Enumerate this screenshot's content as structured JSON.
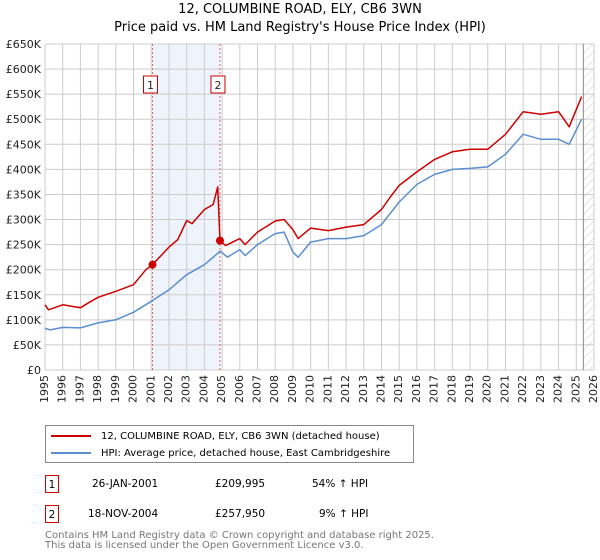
{
  "title_line1": "12, COLUMBINE ROAD, ELY, CB6 3WN",
  "title_line2": "Price paid vs. HM Land Registry's House Price Index (HPI)",
  "chart_data": {
    "type": "line",
    "title": "12, COLUMBINE ROAD, ELY, CB6 3WN — Price paid vs. HM Land Registry's House Price Index (HPI)",
    "xlim": [
      1995,
      2026
    ],
    "ylim": [
      0,
      650000
    ],
    "x_ticks": [
      "1995",
      "1996",
      "1997",
      "1998",
      "1999",
      "2000",
      "2001",
      "2002",
      "2003",
      "2004",
      "2005",
      "2006",
      "2007",
      "2008",
      "2009",
      "2010",
      "2011",
      "2012",
      "2013",
      "2014",
      "2015",
      "2016",
      "2017",
      "2018",
      "2019",
      "2020",
      "2021",
      "2022",
      "2023",
      "2024",
      "2025",
      "2026"
    ],
    "y_ticks": [
      "£0",
      "£50K",
      "£100K",
      "£150K",
      "£200K",
      "£250K",
      "£300K",
      "£350K",
      "£400K",
      "£450K",
      "£500K",
      "£550K",
      "£600K",
      "£650K"
    ],
    "grid": true,
    "series": [
      {
        "name": "12, COLUMBINE ROAD, ELY, CB6 3WN (detached house)",
        "color": "#cc0000",
        "x": [
          1995,
          1995.2,
          1996,
          1997,
          1997.5,
          1998,
          1999,
          2000,
          2000.7,
          2001.07,
          2002,
          2002.5,
          2003,
          2003.3,
          2004,
          2004.5,
          2004.75,
          2004.88,
          2005.2,
          2006,
          2006.3,
          2007,
          2008,
          2008.5,
          2009,
          2009.3,
          2010,
          2011,
          2012,
          2013,
          2014,
          2014.5,
          2015,
          2016,
          2017,
          2018,
          2019,
          2020,
          2021,
          2022,
          2023,
          2024,
          2024.6,
          2025.3
        ],
        "y": [
          130000,
          120000,
          130000,
          124000,
          135000,
          145000,
          157000,
          170000,
          200000,
          209995,
          245000,
          260000,
          298000,
          292000,
          320000,
          330000,
          365000,
          257950,
          248000,
          262000,
          250000,
          275000,
          297000,
          300000,
          280000,
          262000,
          283000,
          278000,
          285000,
          290000,
          320000,
          345000,
          368000,
          395000,
          420000,
          435000,
          440000,
          440000,
          470000,
          515000,
          510000,
          515000,
          485000,
          545000
        ]
      },
      {
        "name": "HPI: Average price, detached house, East Cambridgeshire",
        "color": "#5b8fd0",
        "x": [
          1995,
          1995.3,
          1996,
          1997,
          1998,
          1999,
          2000,
          2001,
          2002,
          2003,
          2004,
          2004.9,
          2005.3,
          2006,
          2006.3,
          2007,
          2008,
          2008.5,
          2009,
          2009.3,
          2010,
          2011,
          2012,
          2013,
          2014,
          2015,
          2016,
          2017,
          2018,
          2019,
          2020,
          2021,
          2022,
          2023,
          2024,
          2024.6,
          2025.3
        ],
        "y": [
          83000,
          80000,
          85000,
          84000,
          94000,
          100000,
          115000,
          137000,
          160000,
          190000,
          210000,
          237000,
          225000,
          240000,
          228000,
          250000,
          272000,
          275000,
          235000,
          225000,
          255000,
          262000,
          262000,
          268000,
          290000,
          335000,
          370000,
          390000,
          400000,
          402000,
          405000,
          430000,
          470000,
          460000,
          460000,
          450000,
          500000
        ]
      }
    ],
    "sales": [
      {
        "label": "1",
        "x": 2001.07,
        "y": 209995
      },
      {
        "label": "2",
        "x": 2004.88,
        "y": 257950
      }
    ],
    "shaded_range": [
      2001.07,
      2004.88
    ],
    "future_hatch_from": 2025.4
  },
  "legend": [
    {
      "label": "12, COLUMBINE ROAD, ELY, CB6 3WN (detached house)",
      "color": "#cc0000"
    },
    {
      "label": "HPI: Average price, detached house, East Cambridgeshire",
      "color": "#5b8fd0"
    }
  ],
  "transactions": [
    {
      "num": "1",
      "date": "26-JAN-2001",
      "price": "£209,995",
      "hpi": "54% ↑ HPI"
    },
    {
      "num": "2",
      "date": "18-NOV-2004",
      "price": "£257,950",
      "hpi": "9% ↑ HPI"
    }
  ],
  "footer_line1": "Contains HM Land Registry data © Crown copyright and database right 2025.",
  "footer_line2": "This data is licensed under the Open Government Licence v3.0."
}
